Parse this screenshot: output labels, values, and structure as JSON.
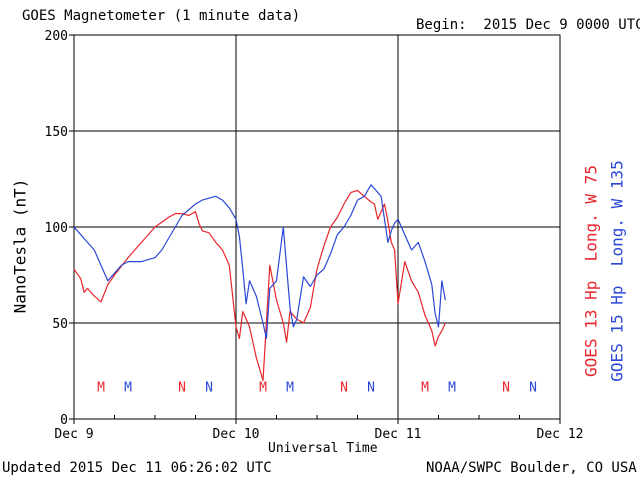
{
  "header": {
    "title": "GOES Magnetometer (1 minute data)",
    "begin": "Begin:  2015 Dec 9 0000 UTC"
  },
  "footer": {
    "updated": "Updated 2015 Dec 11 06:26:02 UTC",
    "credit": "NOAA/SWPC Boulder, CO USA"
  },
  "colors": {
    "goes13": "#e8262c",
    "goes15": "#2b47d6",
    "grid": "#000000"
  },
  "chart_data": {
    "type": "line",
    "title": "GOES Magnetometer (1 minute data)",
    "xlabel": "Universal Time",
    "ylabel": "NanoTesla (nT)",
    "xlim": [
      0,
      72
    ],
    "ylim": [
      0,
      200
    ],
    "grid": true,
    "x_unit": "hours since 2015 Dec 9 0000 UTC",
    "x_ticks": [
      {
        "x": 0,
        "label": "Dec 9"
      },
      {
        "x": 24,
        "label": "Dec 10"
      },
      {
        "x": 48,
        "label": "Dec 11"
      },
      {
        "x": 72,
        "label": "Dec 12"
      }
    ],
    "y_ticks": [
      0,
      50,
      100,
      150,
      200
    ],
    "series": [
      {
        "name": "GOES 13 Hp  Long. W 75",
        "color": "#e8262c",
        "x": [
          0,
          1,
          1.5,
          2,
          3,
          4,
          5,
          6,
          8,
          10,
          12,
          14,
          15,
          16,
          17,
          18,
          18.5,
          19,
          20,
          21,
          22,
          23,
          24,
          24.5,
          25,
          26,
          27,
          28,
          29,
          30,
          31,
          31.5,
          32,
          33,
          34,
          35,
          36,
          37,
          38,
          39,
          40,
          41,
          42,
          43,
          44,
          44.5,
          45,
          46,
          46.5,
          47,
          47.5,
          48,
          49,
          50,
          51,
          52,
          53,
          53.5,
          54,
          54.5,
          55
        ],
        "y": [
          78,
          73,
          66,
          68,
          64,
          61,
          70,
          75,
          84,
          92,
          100,
          105,
          107,
          107,
          106,
          108,
          102,
          98,
          97,
          92,
          88,
          80,
          48,
          42,
          56,
          48,
          32,
          20,
          80,
          62,
          50,
          40,
          56,
          52,
          50,
          58,
          78,
          90,
          100,
          105,
          112,
          118,
          119,
          116,
          113,
          112,
          104,
          112,
          103,
          92,
          88,
          60,
          82,
          72,
          66,
          54,
          46,
          38,
          43,
          46,
          50
        ]
      },
      {
        "name": "GOES 15 Hp  Long. W 135",
        "color": "#2b47d6",
        "x": [
          0,
          1,
          2,
          3,
          4,
          5,
          6,
          7,
          8,
          9,
          10,
          11,
          12,
          13,
          14,
          15,
          16,
          17,
          18,
          19,
          20,
          21,
          22,
          23,
          24,
          24.5,
          25,
          25.5,
          26,
          27,
          28,
          28.5,
          29,
          30,
          31,
          32,
          32.5,
          33,
          34,
          35,
          36,
          37,
          38,
          39,
          40,
          41,
          42,
          43,
          44,
          45,
          45.5,
          46,
          46.5,
          47,
          47.5,
          48,
          49,
          50,
          51,
          52,
          53,
          53.5,
          54,
          54.5,
          55
        ],
        "y": [
          100,
          96,
          92,
          88,
          80,
          72,
          76,
          80,
          82,
          82,
          82,
          83,
          84,
          88,
          94,
          100,
          106,
          109,
          112,
          114,
          115,
          116,
          114,
          110,
          104,
          95,
          78,
          60,
          72,
          64,
          50,
          42,
          68,
          72,
          100,
          58,
          48,
          52,
          74,
          69,
          75,
          78,
          86,
          96,
          100,
          106,
          114,
          116,
          122,
          118,
          116,
          104,
          92,
          98,
          102,
          104,
          96,
          88,
          92,
          82,
          70,
          55,
          48,
          72,
          62
        ]
      }
    ],
    "markers": [
      {
        "x": 4,
        "label": "M",
        "color": "#e8262c"
      },
      {
        "x": 8,
        "label": "M",
        "color": "#2b47d6"
      },
      {
        "x": 16,
        "label": "N",
        "color": "#e8262c"
      },
      {
        "x": 20,
        "label": "N",
        "color": "#2b47d6"
      },
      {
        "x": 28,
        "label": "M",
        "color": "#e8262c"
      },
      {
        "x": 32,
        "label": "M",
        "color": "#2b47d6"
      },
      {
        "x": 40,
        "label": "N",
        "color": "#e8262c"
      },
      {
        "x": 44,
        "label": "N",
        "color": "#2b47d6"
      },
      {
        "x": 52,
        "label": "M",
        "color": "#e8262c"
      },
      {
        "x": 56,
        "label": "M",
        "color": "#2b47d6"
      },
      {
        "x": 64,
        "label": "N",
        "color": "#e8262c"
      },
      {
        "x": 68,
        "label": "N",
        "color": "#2b47d6"
      }
    ],
    "marker_y": 17
  }
}
